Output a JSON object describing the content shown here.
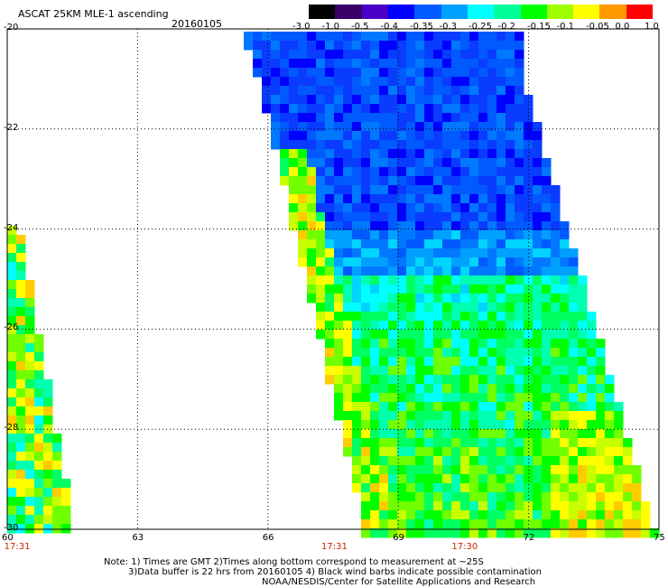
{
  "header": {
    "title": "ASCAT 25KM MLE-1 ascending",
    "date": "20160105"
  },
  "colorbar": {
    "labels": [
      "-3.0",
      "-1.0",
      "-0.5",
      "-0.4",
      "-0.35",
      "-0.3",
      "-0.25",
      "-0.2",
      "-0.15",
      "-0.1",
      "-0.05",
      "0.0",
      "1.0"
    ],
    "colors": [
      "#000000",
      "#3a006a",
      "#4b00c8",
      "#0000ff",
      "#005aff",
      "#00a0ff",
      "#00ffff",
      "#00ff99",
      "#00ff00",
      "#9dff00",
      "#ffff00",
      "#ff9900",
      "#ff0000"
    ]
  },
  "axes": {
    "lat_labels": [
      "-20",
      "-22",
      "-24",
      "-26",
      "-28",
      "-30"
    ],
    "lon_labels": [
      "60",
      "63",
      "66",
      "69",
      "72",
      "75"
    ],
    "lat_range": [
      -30,
      -20
    ],
    "lon_range": [
      60,
      75
    ]
  },
  "times": [
    {
      "label": "17:31",
      "lon": 60.2
    },
    {
      "label": "17:31",
      "lon": 67.5
    },
    {
      "label": "17:30",
      "lon": 70.5
    }
  ],
  "notes": {
    "line1": "Note: 1) Times are GMT 2)Times along bottom correspond to measurement at ~25S",
    "line2": "3)Data buffer is 22 hrs from 20160105 4) Black wind barbs indicate possible contamination",
    "line3": "NOAA/NESDIS/Center for Satellite Applications and Research"
  }
}
